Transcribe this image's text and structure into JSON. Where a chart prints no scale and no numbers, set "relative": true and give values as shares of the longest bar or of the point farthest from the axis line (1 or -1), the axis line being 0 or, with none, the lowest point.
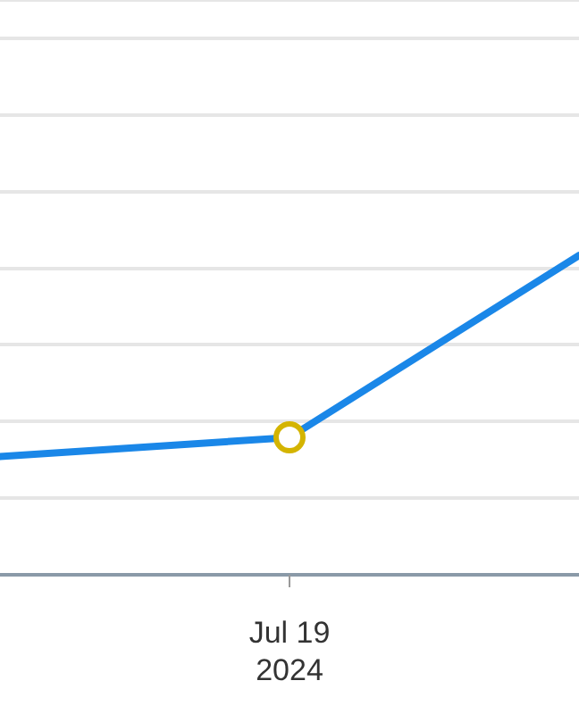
{
  "chart_data": {
    "type": "line",
    "relative": true,
    "categories": [
      null,
      null,
      null
    ],
    "series": [
      {
        "color": "#1a87e8",
        "values": [
          0.37,
          0.43,
          1
        ]
      }
    ],
    "annotations": [
      "Jul 19 2024"
    ],
    "grid": "y"
  }
}
